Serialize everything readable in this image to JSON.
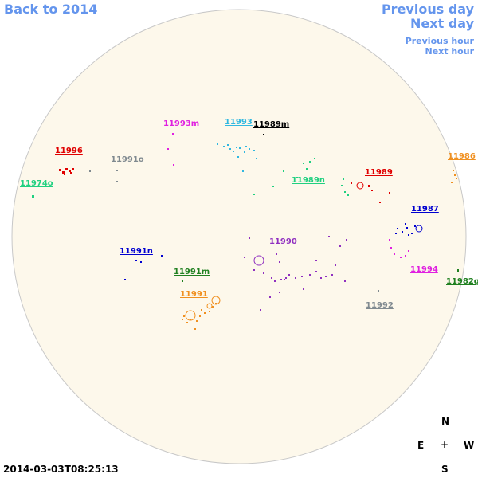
{
  "nav": {
    "back": "Back to 2014",
    "prev_day": "Previous day",
    "next_day": "Next day",
    "prev_hour": "Previous hour",
    "next_hour": "Next hour",
    "link_color": "#6495ed"
  },
  "timestamp": "2014-03-03T08:25:13",
  "disk": {
    "fill": "#fdf8eb",
    "stroke": "#c8c8c8"
  },
  "compass": {
    "n": "N",
    "s": "S",
    "e": "E",
    "w": "W",
    "center": "+"
  },
  "regions": [
    {
      "id": "11993m",
      "color": "#e020e0"
    },
    {
      "id": "11993",
      "color": "#30b8e0"
    },
    {
      "id": "11989m",
      "color": "#000000"
    },
    {
      "id": "11996",
      "color": "#e00000"
    },
    {
      "id": "11991o",
      "color": "#808a90"
    },
    {
      "id": "11974o",
      "color": "#20d080"
    },
    {
      "id": "11989n",
      "color": "#20d080"
    },
    {
      "id": "11989",
      "color": "#e00000"
    },
    {
      "id": "11986",
      "color": "#f09020"
    },
    {
      "id": "11987",
      "color": "#0000d0"
    },
    {
      "id": "11990",
      "color": "#9030c0"
    },
    {
      "id": "11991n",
      "color": "#0000d0"
    },
    {
      "id": "11991m",
      "color": "#208020"
    },
    {
      "id": "11994",
      "color": "#e020e0"
    },
    {
      "id": "11982q",
      "color": "#208020"
    },
    {
      "id": "11991",
      "color": "#f09020"
    },
    {
      "id": "11992",
      "color": "#808a90"
    }
  ]
}
